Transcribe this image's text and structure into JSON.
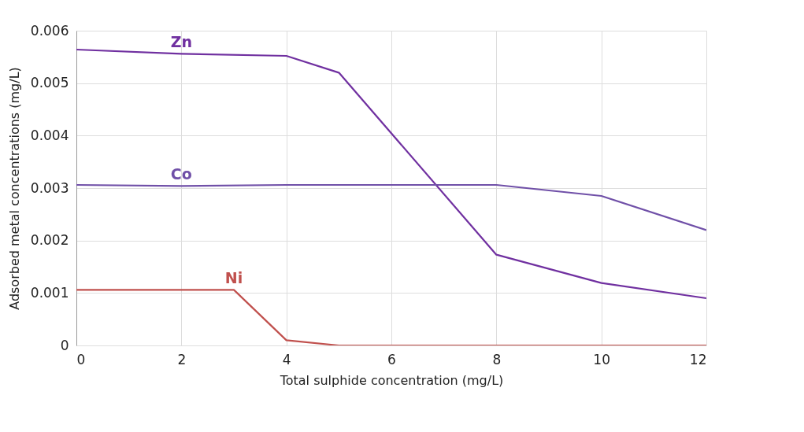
{
  "chart_data": {
    "type": "line",
    "xlabel": "Total sulphide concentration (mg/L)",
    "ylabel": "Adsorbed metal concentrations (mg/L)",
    "series": [
      {
        "name": "Zn",
        "color": "#7030a0",
        "x": [
          0,
          2,
          4,
          5,
          8,
          10,
          12
        ],
        "values": [
          0.00564,
          0.00556,
          0.00552,
          0.0052,
          0.00173,
          0.00119,
          0.0009
        ]
      },
      {
        "name": "Co",
        "color": "#7050a8",
        "x": [
          0,
          2,
          4,
          8,
          10,
          12
        ],
        "values": [
          0.00306,
          0.00304,
          0.00306,
          0.00306,
          0.00285,
          0.0022
        ]
      },
      {
        "name": "Ni",
        "color": "#c0504d",
        "x": [
          0,
          3,
          4,
          5,
          8,
          10,
          12
        ],
        "values": [
          0.00106,
          0.00106,
          0.0001,
          0,
          0,
          0,
          0
        ]
      }
    ],
    "xlim": [
      0,
      12
    ],
    "xticks": [
      0,
      2,
      4,
      6,
      8,
      10,
      12
    ],
    "ylim": [
      0,
      0.006
    ],
    "yticks": [
      0,
      0.001,
      0.002,
      0.003,
      0.004,
      0.005,
      0.006
    ],
    "grid": true,
    "legend": false,
    "marker": "none",
    "line_style": "solid"
  }
}
